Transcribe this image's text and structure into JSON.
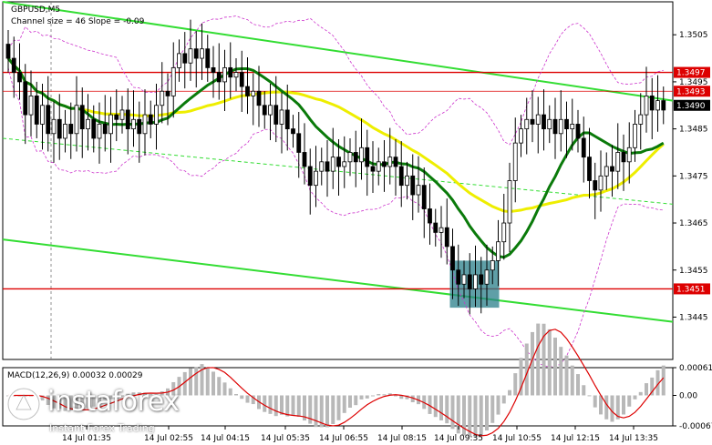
{
  "header": {
    "symbol": "GBPUSD,M5",
    "indicator": "Channel size = 46 Slope = -0.09"
  },
  "macd_header": "MACD(12,26,9) 0.00032 0.00029",
  "logo": {
    "brand": "instaforex",
    "tagline": "Instant Forex Trading"
  },
  "colors": {
    "channel": "#33dd33",
    "red_level": "#dd0000",
    "ma_fast": "#0a7a0a",
    "ma_slow": "#eeee00",
    "bollinger": "#cc33cc",
    "candle": "#000000",
    "highlight": "#2a7f8a",
    "macd_hist": "#b8b8b8",
    "macd_signal": "#dd0000"
  },
  "chart_data": {
    "type": "candlestick",
    "symbol": "GBPUSD",
    "timeframe": "M5",
    "y_axis": {
      "range": [
        1.3436,
        1.3512
      ],
      "ticks": [
        "1.3505",
        "1.3495",
        "1.3485",
        "1.3475",
        "1.3465",
        "1.3455",
        "1.3445"
      ]
    },
    "x_axis_labels": [
      "14 Jul 01:35",
      "14 Jul 02:55",
      "14 Jul 04:15",
      "14 Jul 05:35",
      "14 Jul 06:55",
      "14 Jul 08:15",
      "14 Jul 09:35",
      "14 Jul 10:55",
      "14 Jul 12:15",
      "14 Jul 13:35"
    ],
    "price_tags": [
      {
        "value": "1.3497",
        "y": 1.3497,
        "style": "red"
      },
      {
        "value": "1.3493",
        "y": 1.3493,
        "style": "red"
      },
      {
        "value": "1.3490",
        "y": 1.349,
        "style": "black"
      },
      {
        "value": "1.3451",
        "y": 1.3451,
        "style": "red"
      }
    ],
    "horizontal_levels": [
      1.3497,
      1.3493,
      1.3451
    ],
    "close": [
      1.35,
      1.3497,
      1.3495,
      1.3488,
      1.3492,
      1.3486,
      1.349,
      1.3484,
      1.3487,
      1.3483,
      1.3486,
      1.3484,
      1.349,
      1.3485,
      1.3487,
      1.3483,
      1.3486,
      1.3484,
      1.3488,
      1.3487,
      1.3489,
      1.3485,
      1.3487,
      1.3484,
      1.3488,
      1.3486,
      1.349,
      1.3493,
      1.3492,
      1.3498,
      1.3501,
      1.3499,
      1.3502,
      1.35,
      1.3502,
      1.3498,
      1.3497,
      1.3495,
      1.3498,
      1.3496,
      1.3497,
      1.3494,
      1.3492,
      1.3493,
      1.349,
      1.3488,
      1.349,
      1.3486,
      1.3489,
      1.3485,
      1.3484,
      1.348,
      1.3477,
      1.3473,
      1.3476,
      1.3478,
      1.3476,
      1.3479,
      1.3477,
      1.3478,
      1.348,
      1.3478,
      1.3481,
      1.3477,
      1.3476,
      1.3478,
      1.3477,
      1.3479,
      1.3477,
      1.3473,
      1.3475,
      1.3471,
      1.3473,
      1.3468,
      1.3465,
      1.3463,
      1.3464,
      1.346,
      1.3455,
      1.3452,
      1.3454,
      1.3451,
      1.3454,
      1.3452,
      1.3455,
      1.3457,
      1.3461,
      1.3465,
      1.3474,
      1.3482,
      1.3485,
      1.3487,
      1.3486,
      1.3488,
      1.3485,
      1.3487,
      1.3484,
      1.3487,
      1.3485,
      1.3486,
      1.3483,
      1.3479,
      1.3474,
      1.3472,
      1.3475,
      1.3477,
      1.3476,
      1.348,
      1.3478,
      1.3481,
      1.3486,
      1.3488,
      1.3492,
      1.3489,
      1.3491,
      1.3489
    ],
    "ma_fast_note": "green moving average",
    "ma_slow_note": "yellow moving average",
    "macd": {
      "label": "MACD(12,26,9)",
      "main": 0.00032,
      "signal": 0.00029,
      "ticks": [
        "0.00061",
        "0.00",
        "-0.00067"
      ],
      "range": [
        -0.00067,
        0.00061
      ]
    }
  }
}
